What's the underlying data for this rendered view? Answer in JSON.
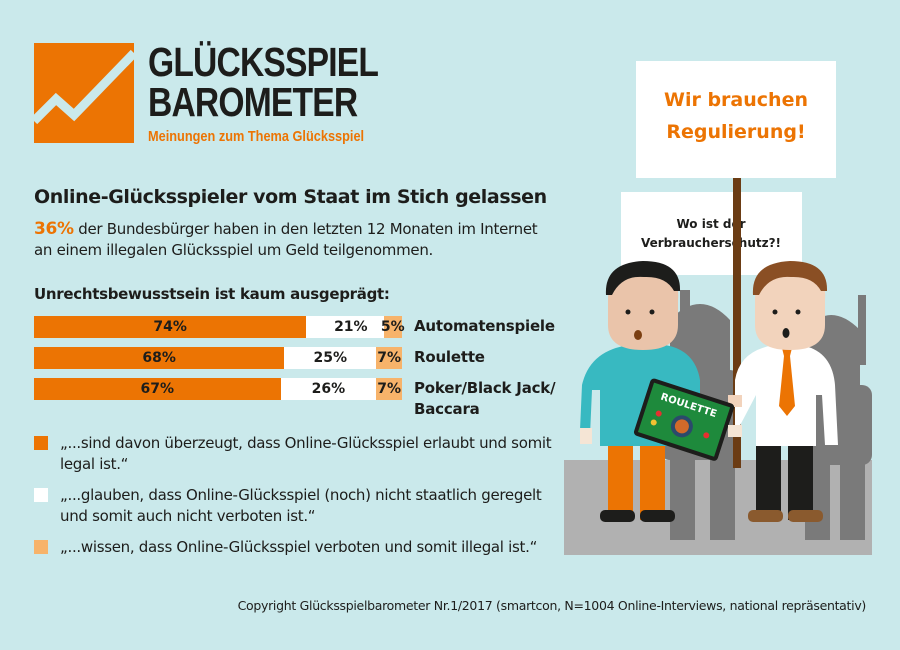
{
  "brand": {
    "line1": "GLÜCKSSPIEL",
    "line2": "BAROMETER",
    "tagline": "Meinungen zum Thema Glücksspiel",
    "logo_icon": "rising-chart-icon"
  },
  "colors": {
    "background": "#cae9eb",
    "orange": "#ec7403",
    "white": "#ffffff",
    "light_orange": "#f7b36a",
    "text": "#1d1d1b"
  },
  "headline": "Online-Glücksspieler vom Staat im Stich gelassen",
  "intro": {
    "highlight": "36%",
    "text": " der Bundesbürger haben in den letzten 12 Monaten im Internet an einem illegalen Glücksspiel um Geld teilgenommen."
  },
  "chart_data": {
    "type": "bar",
    "orientation": "horizontal",
    "stacked": true,
    "title": "Unrechtsbewusstsein ist kaum ausgeprägt:",
    "categories": [
      "Automatenspiele",
      "Roulette",
      "Poker/Black Jack/ Baccara"
    ],
    "category_lines": [
      [
        "Automatenspiele"
      ],
      [
        "Roulette"
      ],
      [
        "Poker/Black Jack/",
        "Baccara"
      ]
    ],
    "series": [
      {
        "name": "„...sind davon überzeugt, dass Online-Glücksspiel erlaubt und somit legal ist.“",
        "color": "#ec7403",
        "values": [
          74,
          68,
          67
        ],
        "labels": [
          "74%",
          "68%",
          "67%"
        ]
      },
      {
        "name": "„...glauben, dass Online-Glücksspiel (noch) nicht staatlich geregelt und somit auch nicht verboten ist.“",
        "color": "#ffffff",
        "values": [
          21,
          25,
          26
        ],
        "labels": [
          "21%",
          "25%",
          "26%"
        ]
      },
      {
        "name": "„...wissen, dass Online-Glücksspiel verboten und somit illegal ist.“",
        "color": "#f7b36a",
        "values": [
          5,
          7,
          7
        ],
        "labels": [
          "5%",
          "7%",
          "7%"
        ]
      }
    ],
    "xlim": [
      0,
      100
    ],
    "legend": "bottom",
    "grid": false
  },
  "illustration": {
    "sign_big": [
      "Wir brauchen",
      "Regulierung!"
    ],
    "sign_small": [
      "Wo ist der",
      "Verbraucherschutz?!"
    ],
    "tablet_label": "ROULETTE"
  },
  "copyright": "Copyright Glücksspielbarometer Nr.1/2017 (smartcon, N=1004 Online-Interviews, national repräsentativ)"
}
